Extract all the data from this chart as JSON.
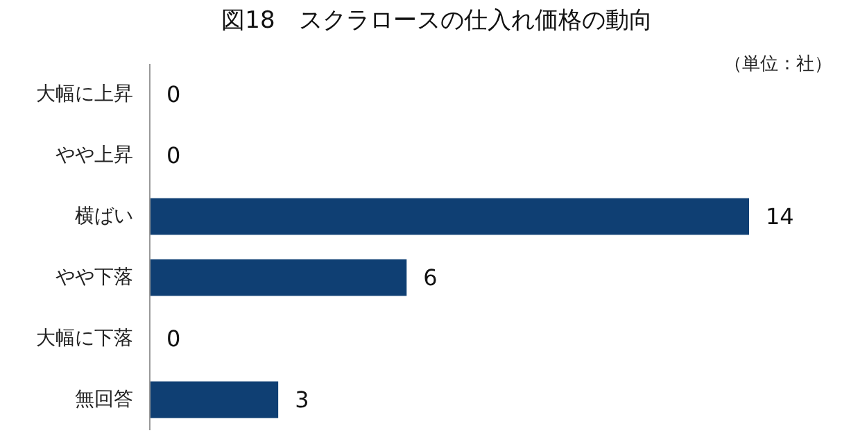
{
  "chart_data": {
    "type": "bar",
    "orientation": "horizontal",
    "title": "図18　スクラロースの仕入れ価格の動向",
    "annotations": [
      "（単位：社）"
    ],
    "categories": [
      "大幅に上昇",
      "やや上昇",
      "横ばい",
      "やや下落",
      "大幅に下落",
      "無回答"
    ],
    "values": [
      0,
      0,
      14,
      6,
      0,
      3
    ],
    "color": "#0f3f73",
    "data_labels": true
  }
}
